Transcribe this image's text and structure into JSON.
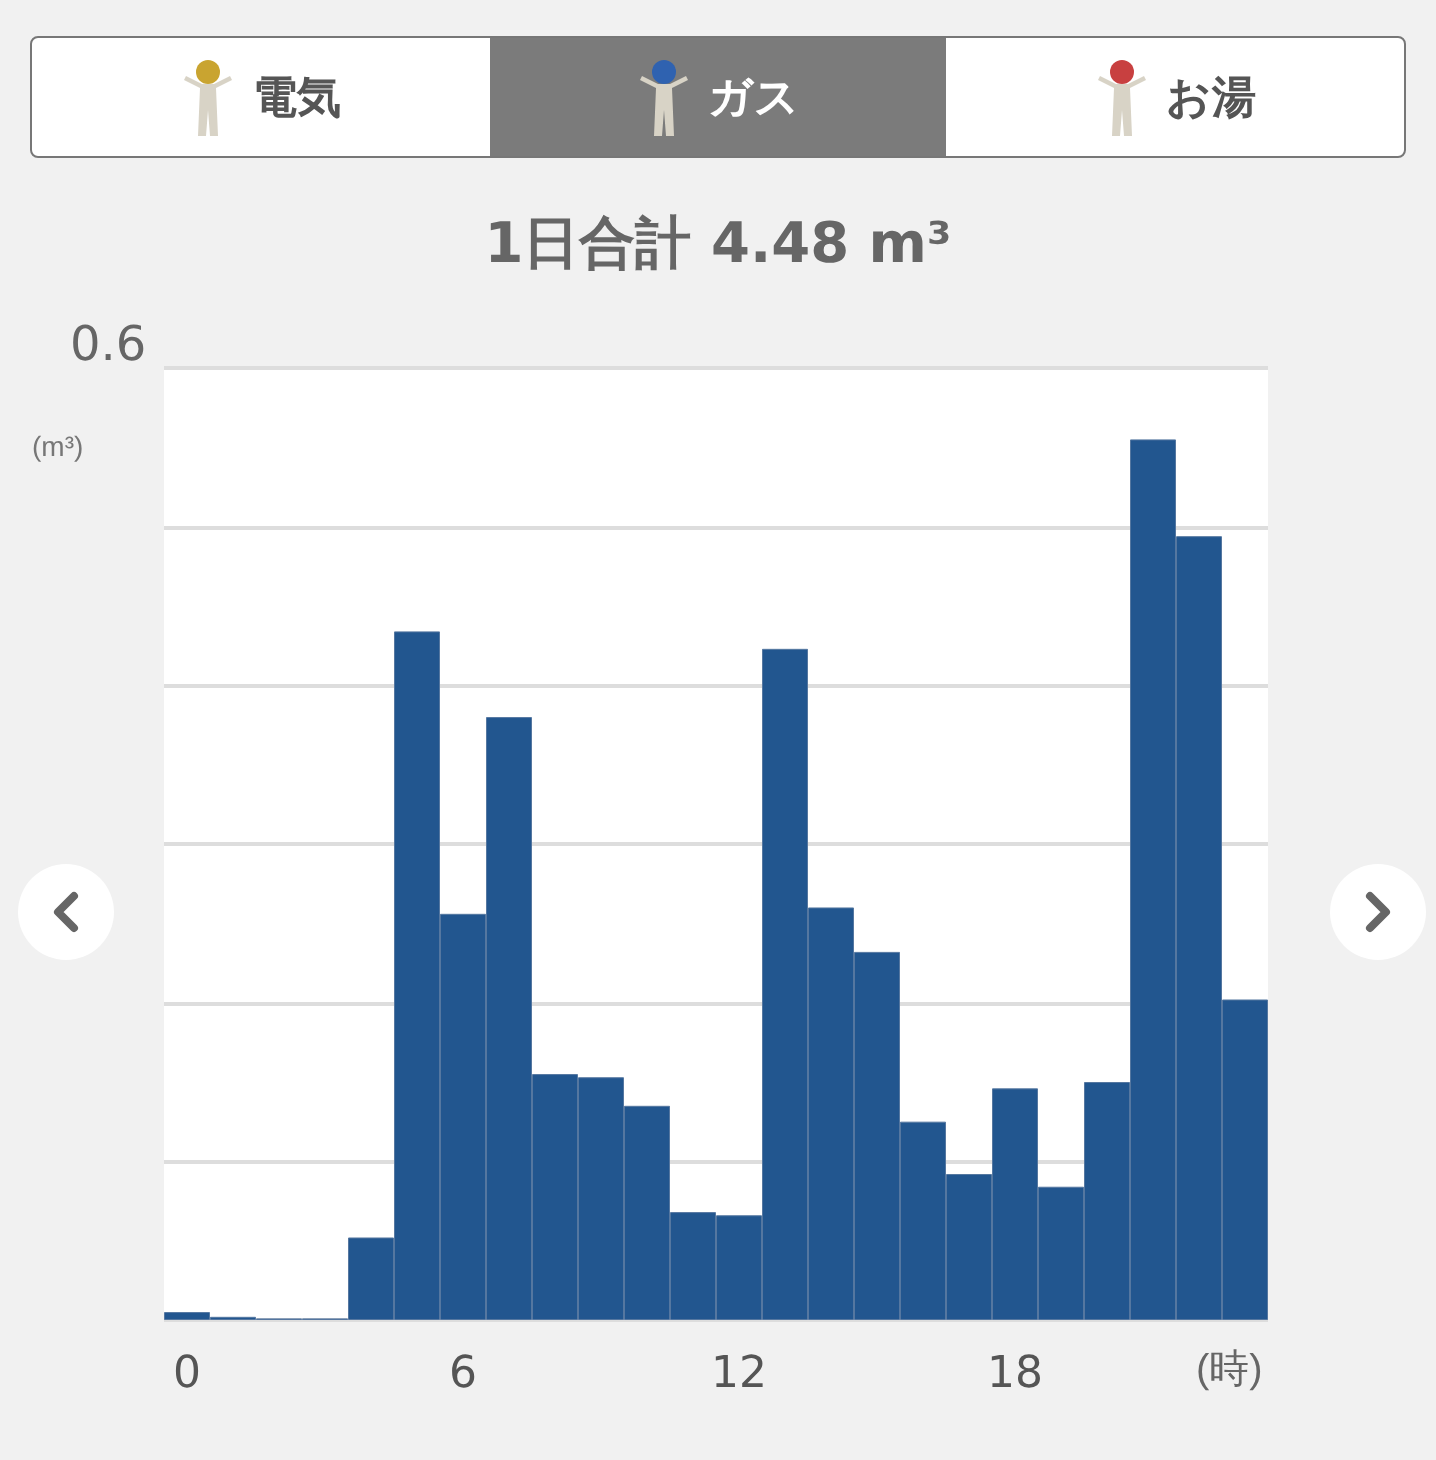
{
  "chart_data": {
    "type": "bar",
    "title": "1日合計 4.48 m³",
    "ylabel": "(m³)",
    "xlabel": "(時)",
    "annotations": [
      "電気",
      "ガス",
      "お湯"
    ],
    "categories": [
      "0",
      null,
      null,
      null,
      null,
      null,
      "6",
      null,
      null,
      null,
      null,
      null,
      "12",
      null,
      null,
      null,
      null,
      null,
      "18",
      null,
      null,
      null,
      null,
      null
    ],
    "values": [
      0.005,
      0.002,
      0.001,
      0.001,
      0.052,
      0.434,
      0.256,
      0.38,
      0.155,
      0.153,
      0.135,
      0.068,
      0.066,
      0.423,
      0.26,
      0.232,
      0.125,
      0.092,
      0.146,
      0.084,
      0.15,
      0.555,
      0.494,
      0.202
    ],
    "color": "#22568f",
    "ylim": [
      0,
      0.6
    ],
    "yticks": [
      {
        "value": 0,
        "label": null
      },
      {
        "value": 0.1,
        "label": null
      },
      {
        "value": 0.2,
        "label": null
      },
      {
        "value": 0.3,
        "label": null
      },
      {
        "value": 0.4,
        "label": null
      },
      {
        "value": 0.5,
        "label": null
      },
      {
        "value": 0.6,
        "label": "0.6"
      }
    ],
    "grid": "y"
  }
}
